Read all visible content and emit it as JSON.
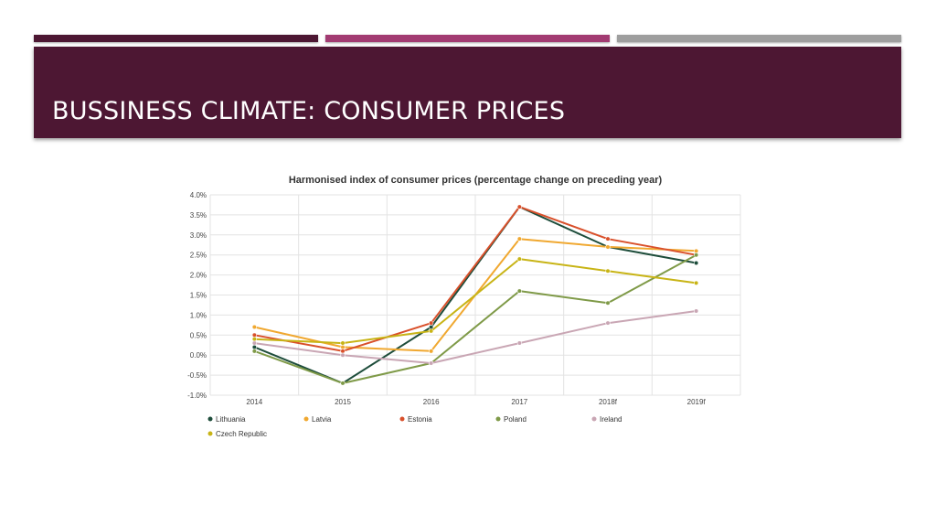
{
  "slide": {
    "title": "BUSSINESS CLIMATE: CONSUMER PRICES",
    "colors": {
      "header": "#4d1733",
      "accent_1": "#4d1733",
      "accent_2": "#a23b72",
      "accent_3": "#9e9e9e"
    }
  },
  "chart_data": {
    "type": "line",
    "title": "Harmonised index of consumer prices (percentage change on preceding year)",
    "xlabel": "",
    "ylabel": "",
    "x": [
      "2014",
      "2015",
      "2016",
      "2017",
      "2018f",
      "2019f"
    ],
    "y_ticks": [
      "4.0%",
      "3.5%",
      "3.0%",
      "2.5%",
      "2.0%",
      "1.5%",
      "1.0%",
      "0.5%",
      "0.0%",
      "-0.5%",
      "-1.0%"
    ],
    "ylim": [
      -1.0,
      4.0
    ],
    "grid": true,
    "legend_position": "bottom",
    "series": [
      {
        "name": "Lithuania",
        "color": "#1e4d3b",
        "values": [
          0.2,
          -0.7,
          0.7,
          3.7,
          2.7,
          2.3
        ]
      },
      {
        "name": "Latvia",
        "color": "#f0a830",
        "values": [
          0.7,
          0.2,
          0.1,
          2.9,
          2.7,
          2.6
        ]
      },
      {
        "name": "Estonia",
        "color": "#d9502b",
        "values": [
          0.5,
          0.1,
          0.8,
          3.7,
          2.9,
          2.5
        ]
      },
      {
        "name": "Poland",
        "color": "#7f9a48",
        "values": [
          0.1,
          -0.7,
          -0.2,
          1.6,
          1.3,
          2.5
        ]
      },
      {
        "name": "Ireland",
        "color": "#c9a6b4",
        "values": [
          0.3,
          0.0,
          -0.2,
          0.3,
          0.8,
          1.1
        ]
      },
      {
        "name": "Czech Republic",
        "color": "#c8b416",
        "values": [
          0.4,
          0.3,
          0.6,
          2.4,
          2.1,
          1.8
        ]
      }
    ]
  }
}
